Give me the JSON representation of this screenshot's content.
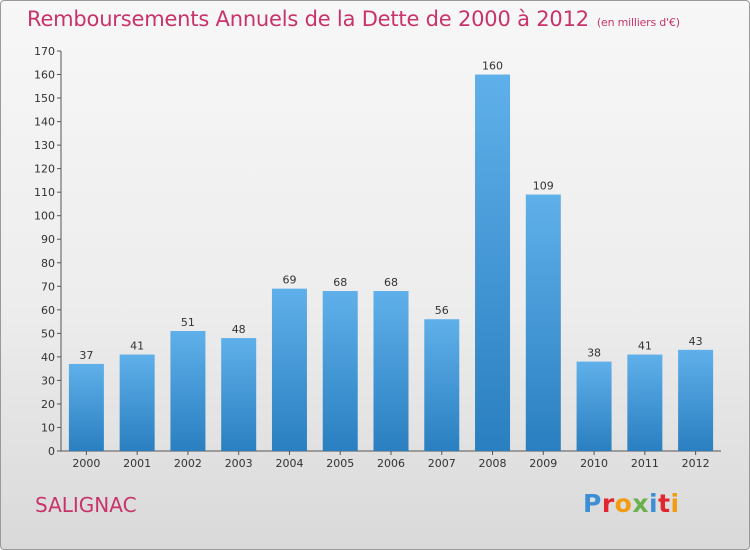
{
  "title": "Remboursements Annuels de la Dette de 2000 à 2012",
  "unit_note": "(en milliers d'€)",
  "commune": "SALIGNAC",
  "logo": {
    "text": "Proxiti",
    "letter_colors": [
      "#3c8fd6",
      "#e2262d",
      "#f39c12",
      "#6ab04c",
      "#3c8fd6",
      "#e2262d",
      "#f39c12"
    ]
  },
  "colors": {
    "accent": "#c8336b",
    "bar_top": "#5fb0ea",
    "bar_bottom": "#2a7fc0"
  },
  "chart_data": {
    "type": "bar",
    "categories": [
      "2000",
      "2001",
      "2002",
      "2003",
      "2004",
      "2005",
      "2006",
      "2007",
      "2008",
      "2009",
      "2010",
      "2011",
      "2012"
    ],
    "values": [
      37,
      41,
      51,
      48,
      69,
      68,
      68,
      56,
      160,
      109,
      38,
      41,
      43
    ],
    "ylim": [
      0,
      170
    ],
    "yticks": [
      0,
      10,
      20,
      30,
      40,
      50,
      60,
      70,
      80,
      90,
      100,
      110,
      120,
      130,
      140,
      150,
      160,
      170
    ],
    "grid": false,
    "legend": "none"
  }
}
